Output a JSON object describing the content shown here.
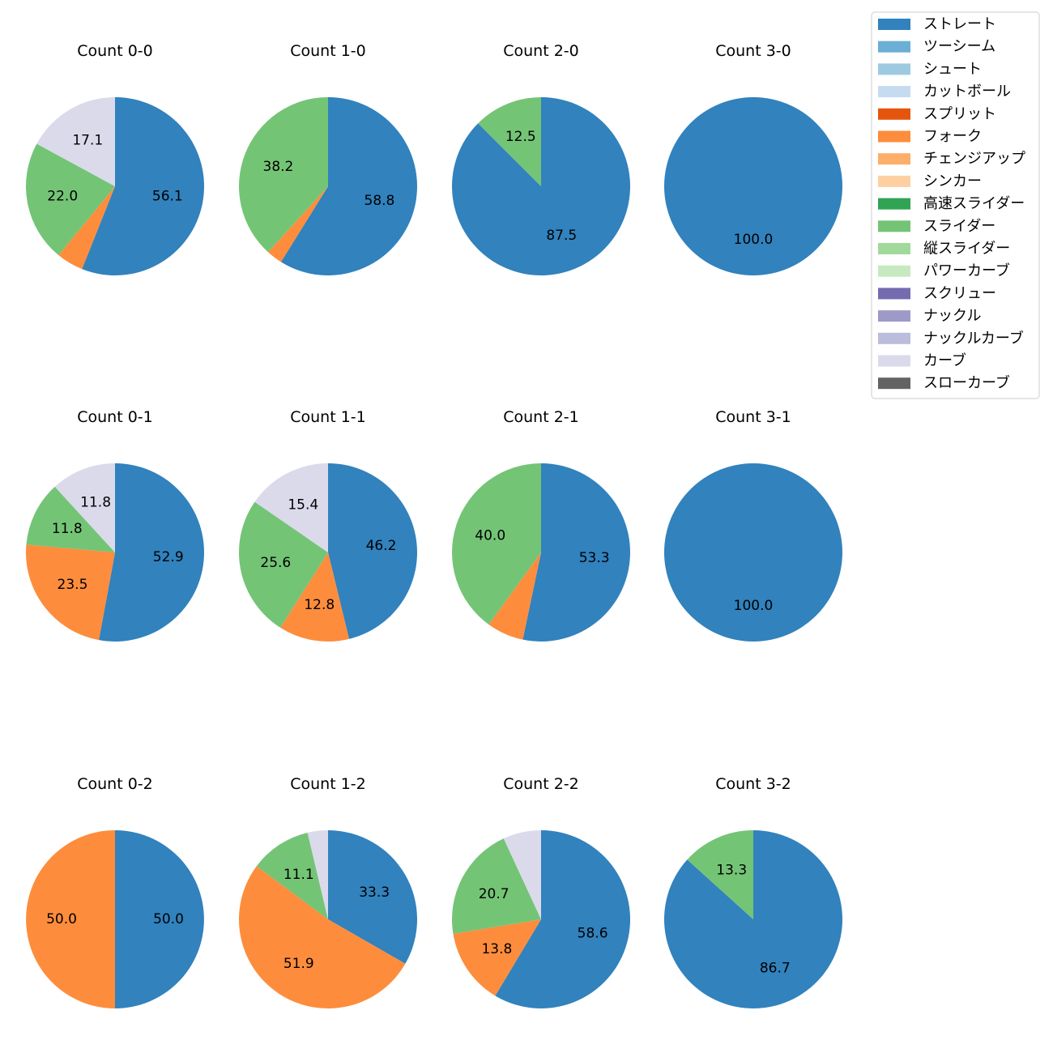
{
  "legend": {
    "items": [
      {
        "name": "ストレート",
        "color": "#3182bd"
      },
      {
        "name": "ツーシーム",
        "color": "#6baed6"
      },
      {
        "name": "シュート",
        "color": "#9ecae1"
      },
      {
        "name": "カットボール",
        "color": "#c6dbef"
      },
      {
        "name": "スプリット",
        "color": "#e6550d"
      },
      {
        "name": "フォーク",
        "color": "#fd8d3c"
      },
      {
        "name": "チェンジアップ",
        "color": "#fdae6b"
      },
      {
        "name": "シンカー",
        "color": "#fdd0a2"
      },
      {
        "name": "高速スライダー",
        "color": "#31a354"
      },
      {
        "name": "スライダー",
        "color": "#74c476"
      },
      {
        "name": "縦スライダー",
        "color": "#a1d99b"
      },
      {
        "name": "パワーカーブ",
        "color": "#c7e9c0"
      },
      {
        "name": "スクリュー",
        "color": "#756bb1"
      },
      {
        "name": "ナックル",
        "color": "#9e9ac8"
      },
      {
        "name": "ナックルカーブ",
        "color": "#bcbddc"
      },
      {
        "name": "カーブ",
        "color": "#dadaeb"
      },
      {
        "name": "スローカーブ",
        "color": "#636363"
      }
    ]
  },
  "chart_data": [
    {
      "type": "pie",
      "title": "Count 0-0",
      "slices": [
        {
          "name": "ストレート",
          "value": 56.1,
          "label": "56.1"
        },
        {
          "name": "フォーク",
          "value": 4.9,
          "label": ""
        },
        {
          "name": "スライダー",
          "value": 22.0,
          "label": "22.0"
        },
        {
          "name": "カーブ",
          "value": 17.1,
          "label": "17.1"
        }
      ]
    },
    {
      "type": "pie",
      "title": "Count 1-0",
      "slices": [
        {
          "name": "ストレート",
          "value": 58.8,
          "label": "58.8"
        },
        {
          "name": "フォーク",
          "value": 2.9,
          "label": ""
        },
        {
          "name": "スライダー",
          "value": 38.2,
          "label": "38.2"
        }
      ]
    },
    {
      "type": "pie",
      "title": "Count 2-0",
      "slices": [
        {
          "name": "ストレート",
          "value": 87.5,
          "label": "87.5"
        },
        {
          "name": "スライダー",
          "value": 12.5,
          "label": "12.5"
        }
      ]
    },
    {
      "type": "pie",
      "title": "Count 3-0",
      "slices": [
        {
          "name": "ストレート",
          "value": 100.0,
          "label": "100.0"
        }
      ]
    },
    {
      "type": "pie",
      "title": "Count 0-1",
      "slices": [
        {
          "name": "ストレート",
          "value": 52.9,
          "label": "52.9"
        },
        {
          "name": "フォーク",
          "value": 23.5,
          "label": "23.5"
        },
        {
          "name": "スライダー",
          "value": 11.8,
          "label": "11.8"
        },
        {
          "name": "カーブ",
          "value": 11.8,
          "label": "11.8"
        }
      ]
    },
    {
      "type": "pie",
      "title": "Count 1-1",
      "slices": [
        {
          "name": "ストレート",
          "value": 46.2,
          "label": "46.2"
        },
        {
          "name": "フォーク",
          "value": 12.8,
          "label": "12.8"
        },
        {
          "name": "スライダー",
          "value": 25.6,
          "label": "25.6"
        },
        {
          "name": "カーブ",
          "value": 15.4,
          "label": "15.4"
        }
      ]
    },
    {
      "type": "pie",
      "title": "Count 2-1",
      "slices": [
        {
          "name": "ストレート",
          "value": 53.3,
          "label": "53.3"
        },
        {
          "name": "フォーク",
          "value": 6.7,
          "label": ""
        },
        {
          "name": "スライダー",
          "value": 40.0,
          "label": "40.0"
        }
      ]
    },
    {
      "type": "pie",
      "title": "Count 3-1",
      "slices": [
        {
          "name": "ストレート",
          "value": 100.0,
          "label": "100.0"
        }
      ]
    },
    {
      "type": "pie",
      "title": "Count 0-2",
      "slices": [
        {
          "name": "ストレート",
          "value": 50.0,
          "label": "50.0"
        },
        {
          "name": "フォーク",
          "value": 50.0,
          "label": "50.0"
        }
      ]
    },
    {
      "type": "pie",
      "title": "Count 1-2",
      "slices": [
        {
          "name": "ストレート",
          "value": 33.3,
          "label": "33.3"
        },
        {
          "name": "フォーク",
          "value": 51.9,
          "label": "51.9"
        },
        {
          "name": "スライダー",
          "value": 11.1,
          "label": "11.1"
        },
        {
          "name": "カーブ",
          "value": 3.7,
          "label": ""
        }
      ]
    },
    {
      "type": "pie",
      "title": "Count 2-2",
      "slices": [
        {
          "name": "ストレート",
          "value": 58.6,
          "label": "58.6"
        },
        {
          "name": "フォーク",
          "value": 13.8,
          "label": "13.8"
        },
        {
          "name": "スライダー",
          "value": 20.7,
          "label": "20.7"
        },
        {
          "name": "カーブ",
          "value": 6.9,
          "label": ""
        }
      ]
    },
    {
      "type": "pie",
      "title": "Count 3-2",
      "slices": [
        {
          "name": "ストレート",
          "value": 86.7,
          "label": "86.7"
        },
        {
          "name": "スライダー",
          "value": 13.3,
          "label": "13.3"
        }
      ]
    }
  ]
}
